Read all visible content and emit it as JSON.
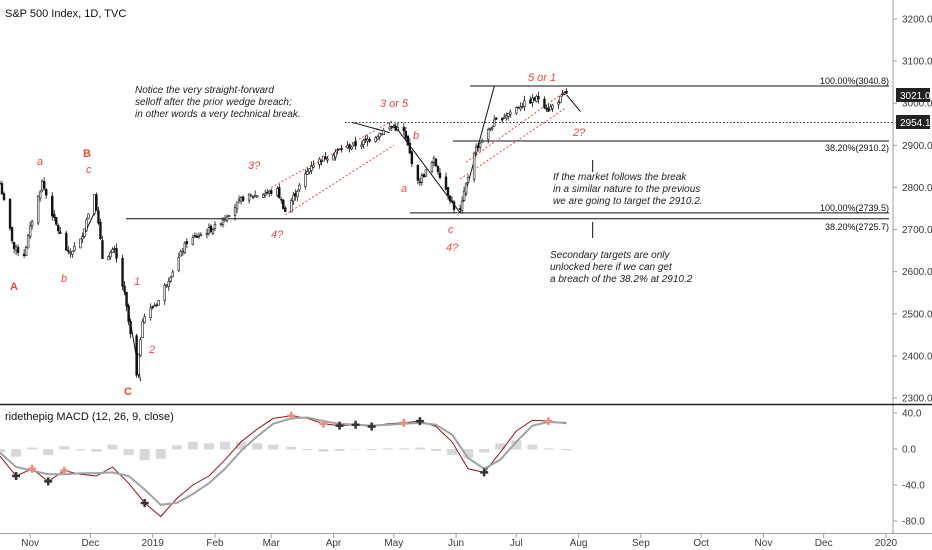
{
  "chart_data": [
    {
      "type": "candlestick",
      "title": "S&P 500 Index, 1D, TVC",
      "x_labels": [
        "Nov",
        "Dec",
        "2019",
        "Feb",
        "Mar",
        "Apr",
        "May",
        "Jun",
        "Jul",
        "Aug",
        "Sep",
        "Oct",
        "Nov",
        "Dec",
        "2020"
      ],
      "y_ticks": [
        "3200.0",
        "3100.0",
        "3000.0",
        "2900.0",
        "2800.0",
        "2700.0",
        "2600.0",
        "2500.0",
        "2400.0",
        "2300.0"
      ],
      "ylim": [
        2285,
        3230
      ],
      "price_labels": [
        "3021.0",
        "2954.1"
      ],
      "fib_levels": [
        {
          "label": "100.00%(3040.8)",
          "value": 3040.8
        },
        {
          "label": "38.20%(2910.2)",
          "value": 2910.2
        },
        {
          "label": "100.00%(2739.5)",
          "value": 2739.5
        },
        {
          "label": "38.20%(2725.7)",
          "value": 2725.7
        }
      ],
      "dotted_level": 2954.1,
      "close_series": [
        {
          "d": "2018-10-17",
          "v": 2810
        },
        {
          "d": "2018-10-24",
          "v": 2655
        },
        {
          "d": "2018-10-29",
          "v": 2641
        },
        {
          "d": "2018-11-02",
          "v": 2723
        },
        {
          "d": "2018-11-07",
          "v": 2813
        },
        {
          "d": "2018-11-13",
          "v": 2722
        },
        {
          "d": "2018-11-20",
          "v": 2641
        },
        {
          "d": "2018-11-26",
          "v": 2673
        },
        {
          "d": "2018-12-03",
          "v": 2790
        },
        {
          "d": "2018-12-07",
          "v": 2633
        },
        {
          "d": "2018-12-13",
          "v": 2650
        },
        {
          "d": "2018-12-18",
          "v": 2546
        },
        {
          "d": "2018-12-24",
          "v": 2351
        },
        {
          "d": "2018-12-27",
          "v": 2489
        },
        {
          "d": "2019-01-04",
          "v": 2532
        },
        {
          "d": "2019-01-08",
          "v": 2574
        },
        {
          "d": "2019-01-18",
          "v": 2671
        },
        {
          "d": "2019-02-01",
          "v": 2706
        },
        {
          "d": "2019-02-15",
          "v": 2775
        },
        {
          "d": "2019-03-04",
          "v": 2792
        },
        {
          "d": "2019-03-08",
          "v": 2743
        },
        {
          "d": "2019-03-21",
          "v": 2854
        },
        {
          "d": "2019-04-05",
          "v": 2892
        },
        {
          "d": "2019-04-15",
          "v": 2905
        },
        {
          "d": "2019-04-30",
          "v": 2945
        },
        {
          "d": "2019-05-06",
          "v": 2932
        },
        {
          "d": "2019-05-13",
          "v": 2811
        },
        {
          "d": "2019-05-21",
          "v": 2864
        },
        {
          "d": "2019-05-31",
          "v": 2752
        },
        {
          "d": "2019-06-03",
          "v": 2744
        },
        {
          "d": "2019-06-10",
          "v": 2886
        },
        {
          "d": "2019-06-20",
          "v": 2954
        },
        {
          "d": "2019-07-03",
          "v": 2995
        },
        {
          "d": "2019-07-12",
          "v": 3013
        },
        {
          "d": "2019-07-17",
          "v": 2985
        },
        {
          "d": "2019-07-26",
          "v": 3025
        }
      ],
      "wave_labels": [
        "A",
        "a",
        "b",
        "B",
        "c",
        "C",
        "1",
        "2",
        "3?",
        "4?",
        "3 or 5",
        "b",
        "a",
        "c",
        "4?",
        "5 or 1",
        "2?"
      ],
      "annotations": [
        {
          "lines": [
            "Notice the very straight-forward",
            "selloff after the prior wedge breach;",
            "in other words a very technical break."
          ]
        },
        {
          "lines": [
            "If the market follows the break",
            "in a similar nature to the previous",
            "we are going to target the 2910.2."
          ]
        },
        {
          "lines": [
            "Secondary targets are only",
            "unlocked here if we can get",
            "a breach of the 38.2% at 2910.2"
          ]
        }
      ]
    },
    {
      "type": "line",
      "title": "ridethepig MACD (12, 26, 9, close)",
      "y_ticks": [
        "40.0",
        "0.0",
        "-40.0",
        "-80.0"
      ],
      "ylim": [
        -82,
        44
      ],
      "series": [
        {
          "name": "MACD",
          "color": "#8b1a1a",
          "values": [
            -8,
            -30,
            -22,
            -36,
            -24,
            -28,
            -30,
            -20,
            -38,
            -60,
            -75,
            -55,
            -40,
            -30,
            -12,
            8,
            22,
            34,
            37,
            34,
            28,
            26,
            27,
            25,
            28,
            29,
            31,
            25,
            8,
            -22,
            -26,
            -4,
            20,
            32,
            31,
            28
          ]
        },
        {
          "name": "Signal",
          "color": "#9ea3a6",
          "values": [
            -4,
            -20,
            -24,
            -28,
            -28,
            -27,
            -27,
            -26,
            -30,
            -45,
            -62,
            -60,
            -50,
            -38,
            -22,
            -2,
            14,
            28,
            34,
            35,
            31,
            28,
            27,
            26,
            27,
            28,
            29,
            27,
            16,
            -10,
            -22,
            -12,
            8,
            26,
            30,
            29
          ]
        }
      ],
      "crosses": [
        {
          "i": 1,
          "color": "#333333"
        },
        {
          "i": 2,
          "color": "#f08d82"
        },
        {
          "i": 3,
          "color": "#333333"
        },
        {
          "i": 4,
          "color": "#f08d82"
        },
        {
          "i": 9,
          "color": "#333333"
        },
        {
          "i": 18,
          "color": "#f08d82"
        },
        {
          "i": 20,
          "color": "#f08d82"
        },
        {
          "i": 21,
          "color": "#333333"
        },
        {
          "i": 22,
          "color": "#333333"
        },
        {
          "i": 23,
          "color": "#333333"
        },
        {
          "i": 25,
          "color": "#f08d82"
        },
        {
          "i": 26,
          "color": "#333333"
        },
        {
          "i": 30,
          "color": "#333333"
        },
        {
          "i": 34,
          "color": "#f08d82"
        }
      ]
    }
  ]
}
